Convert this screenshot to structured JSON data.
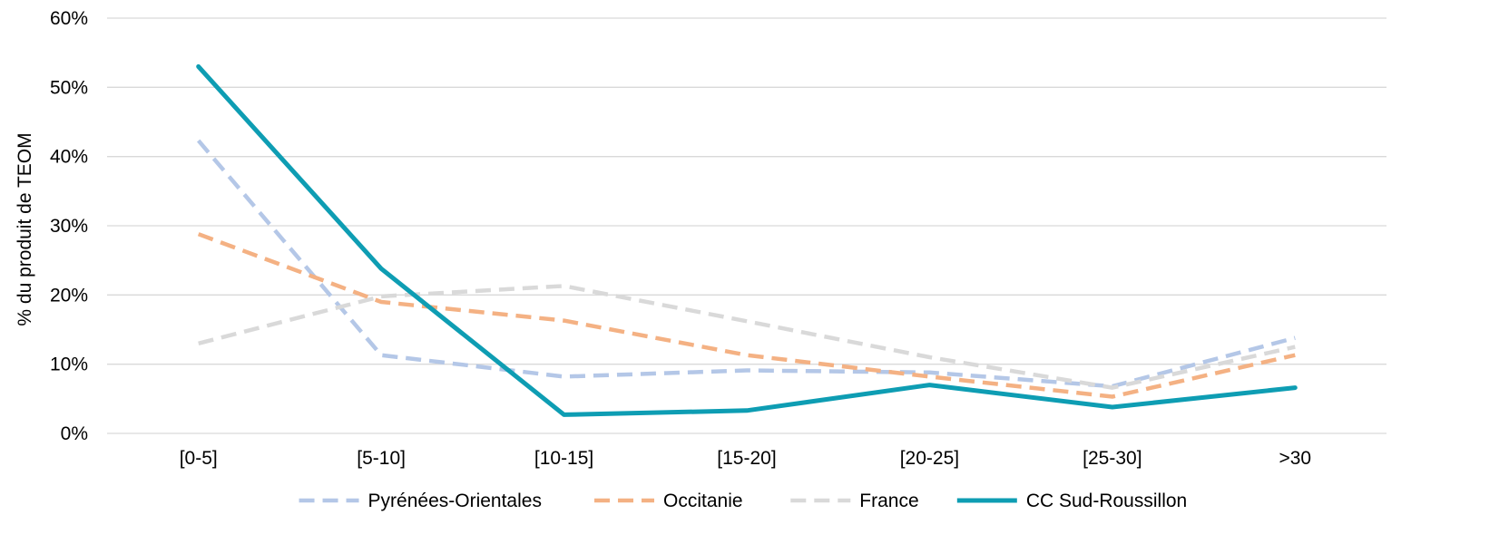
{
  "chart_data": {
    "type": "line",
    "ylabel": "% du produit de TEOM",
    "xlabel": "",
    "categories": [
      "[0-5]",
      "[5-10]",
      "[10-15]",
      "[15-20]",
      "[20-25]",
      "[25-30]",
      ">30"
    ],
    "ylim": [
      0,
      60
    ],
    "yticks": [
      0,
      10,
      20,
      30,
      40,
      50,
      60
    ],
    "ytick_suffix": "%",
    "grid": "horizontal",
    "legend_position": "bottom",
    "series": [
      {
        "name": "Pyrénées-Orientales",
        "values": [
          42.3,
          11.3,
          8.2,
          9.1,
          8.8,
          6.8,
          13.8
        ],
        "color": "#b4c7e7",
        "style": "dashed"
      },
      {
        "name": "Occitanie",
        "values": [
          28.8,
          19.0,
          16.3,
          11.3,
          8.2,
          5.3,
          11.3
        ],
        "color": "#f4b183",
        "style": "dashed"
      },
      {
        "name": "France",
        "values": [
          13.0,
          19.8,
          21.3,
          16.2,
          11.0,
          6.6,
          12.5
        ],
        "color": "#d9d9d9",
        "style": "dashed"
      },
      {
        "name": "CC Sud-Roussillon",
        "values": [
          53.0,
          23.8,
          2.7,
          3.3,
          7.0,
          3.8,
          6.6
        ],
        "color": "#0e9db3",
        "style": "solid"
      }
    ]
  }
}
